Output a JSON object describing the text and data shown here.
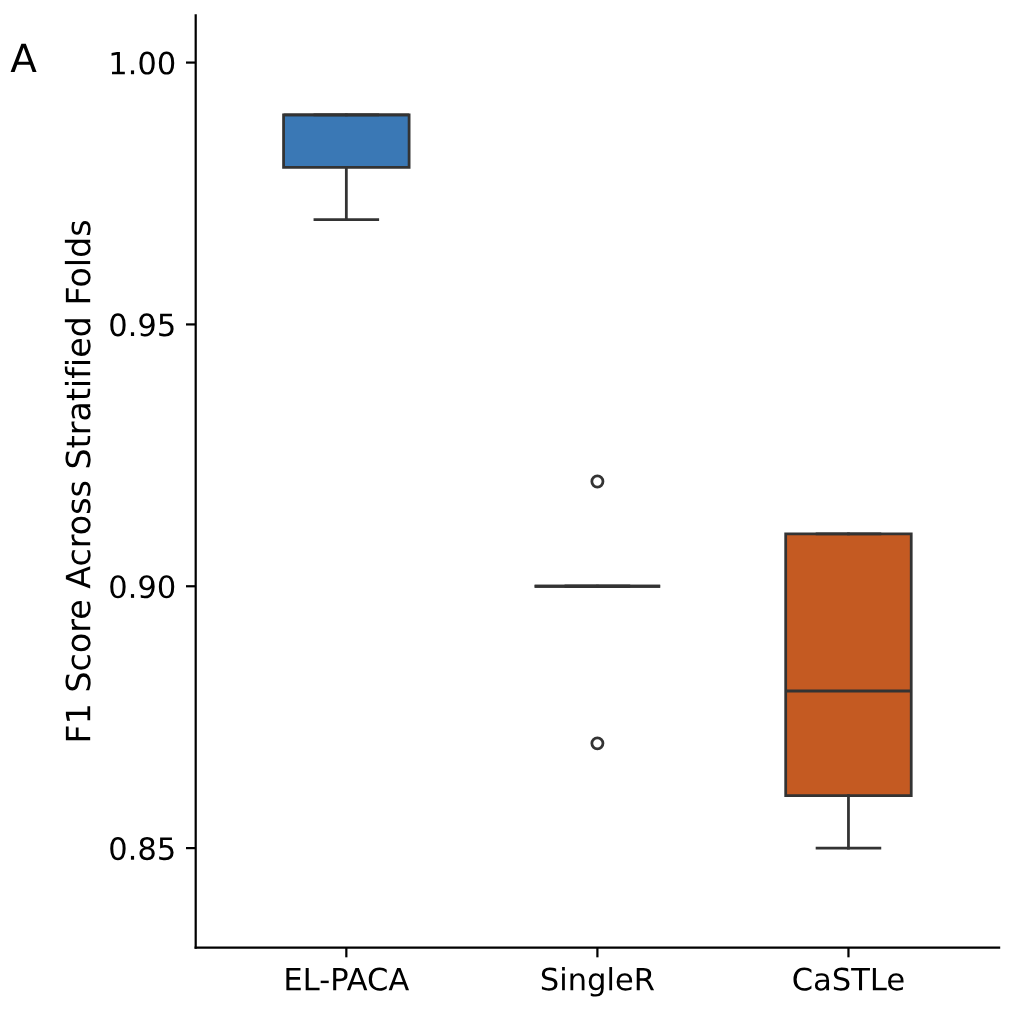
{
  "chart_data": {
    "type": "box",
    "ylabel": "F1 Score Across Stratified Folds",
    "annotations": [
      "A"
    ],
    "categories": [
      "EL-PACA",
      "SingleR",
      "CaSTLe"
    ],
    "colors": [
      "#3a78b5",
      "#333333",
      "#c45a22"
    ],
    "boxes": [
      {
        "low": 0.97,
        "q1": 0.98,
        "median": 0.99,
        "q3": 0.99,
        "high": 0.99
      },
      {
        "low": 0.9,
        "q1": 0.9,
        "median": 0.9,
        "q3": 0.9,
        "high": 0.9,
        "outliers": [
          0.92,
          0.87
        ]
      },
      {
        "low": 0.85,
        "q1": 0.86,
        "median": 0.88,
        "q3": 0.91,
        "high": 0.91
      }
    ],
    "ylim": [
      0.831,
      1.009
    ],
    "yticks": [
      {
        "value": 0.85,
        "label": "0.85"
      },
      {
        "value": 0.9,
        "label": "0.90"
      },
      {
        "value": 0.95,
        "label": "0.95"
      },
      {
        "value": 1.0,
        "label": "1.00"
      }
    ],
    "grid": false
  }
}
